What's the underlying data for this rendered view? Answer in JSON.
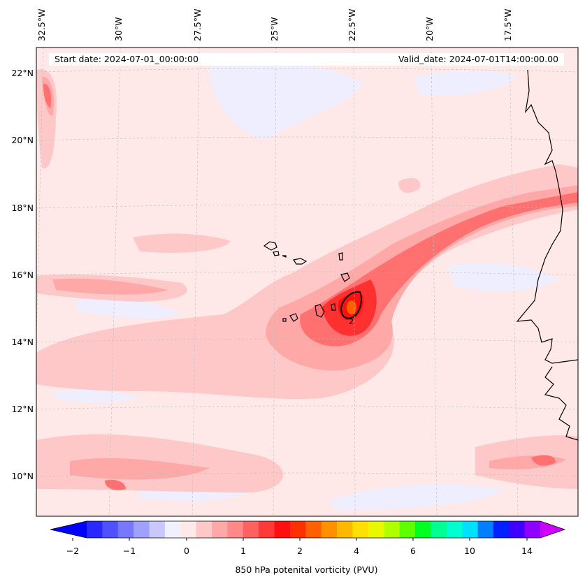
{
  "header": {
    "start_date": "Start date: 2024-07-01_00:00:00",
    "valid_date": "Valid_date: 2024-07-01T14:00:00.00"
  },
  "longitude_labels": [
    "32.5°W",
    "30°W",
    "27.5°W",
    "25°W",
    "22.5°W",
    "20°W",
    "17.5°W"
  ],
  "latitude_labels": [
    "22°N",
    "20°N",
    "18°N",
    "16°N",
    "14°N",
    "12°N",
    "10°N"
  ],
  "colorbar": {
    "tick_labels": [
      "−2",
      "−1",
      "0",
      "1",
      "2",
      "4",
      "6",
      "10",
      "14"
    ],
    "label": "850 hPa potenital vorticity (PVU)",
    "colors": [
      "#0000ff",
      "#2828ff",
      "#5050ff",
      "#7878ff",
      "#a0a0ff",
      "#c8c8ff",
      "#f0f0ff",
      "#ffe8e8",
      "#ffc8c8",
      "#ffa8a8",
      "#ff8888",
      "#ff6060",
      "#ff3838",
      "#ff1010",
      "#ff3000",
      "#ff6000",
      "#ff9000",
      "#ffb800",
      "#ffe000",
      "#e8f800",
      "#b0ff00",
      "#60ff00",
      "#00ff20",
      "#00ff90",
      "#00ffd0",
      "#00e0ff",
      "#0080ff",
      "#0020ff",
      "#4000ff",
      "#9000ff",
      "#d000ff"
    ]
  },
  "chart_data": {
    "type": "map",
    "variable": "850 hPa potenital vorticity (PVU)",
    "colorbar_levels": [
      -2,
      -1,
      0,
      1,
      2,
      4,
      6,
      10,
      14
    ],
    "lon_ticks_deg_w": [
      32.5,
      30,
      27.5,
      25,
      22.5,
      20,
      17.5
    ],
    "lat_ticks_deg_n": [
      22,
      20,
      18,
      16,
      14,
      12,
      10
    ],
    "contour_label": "2",
    "features": [
      "Cape Verde islands",
      "West African coastline"
    ]
  },
  "colors": {
    "background_field": "#ffe8e8",
    "max_core": "#ff2a00",
    "land_outline": "#000000"
  }
}
